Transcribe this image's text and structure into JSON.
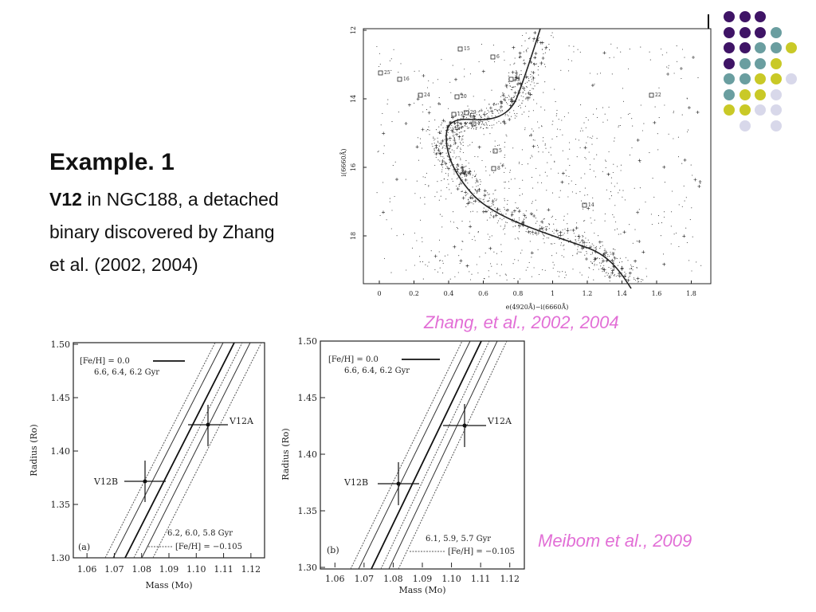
{
  "slide": {
    "title": "Example. 1",
    "star_bold": "V12",
    "description_first": " in NGC188, a detached",
    "description_lines": [
      "binary discovered by Zhang",
      "et al. (2002, 2004)"
    ],
    "credit_top": "Zhang, et al., 2002, 2004",
    "credit_bottom": "Meibom et al., 2009"
  },
  "decor_dots": {
    "colors": [
      "#3f1466",
      "#6a9ea0",
      "#c9c927",
      "#d8d8ea"
    ]
  },
  "cmd_figure": {
    "xlabel": "e(4920Å)−i(6660Å)",
    "ylabel": "i(6660Å)",
    "x_ticks": [
      "0",
      "0.2",
      "0.4",
      "0.6",
      "0.8",
      "1",
      "1.2",
      "1.4",
      "1.6",
      "1.8"
    ],
    "y_ticks": [
      "12",
      "14",
      "16",
      "18"
    ],
    "star_labels": [
      "15",
      "6",
      "25",
      "16",
      "11",
      "24",
      "20",
      "22",
      "12",
      "29",
      "17",
      "5",
      "14",
      "8"
    ]
  },
  "mr_figures": [
    {
      "panel": "(a)",
      "xlabel": "Mass (Mo)",
      "ylabel": "Radius (Ro)",
      "legend_top": "[Fe/H] = 0.0",
      "legend_top_ages": "6.6, 6.4, 6.2 Gyr",
      "legend_bottom_ages": "6.2, 6.0, 5.8 Gyr",
      "legend_bottom": "[Fe/H] = −0.105",
      "x_ticks": [
        "1.06",
        "1.07",
        "1.08",
        "1.09",
        "1.10",
        "1.11",
        "1.12"
      ],
      "y_ticks": [
        "1.50",
        "1.45",
        "1.40",
        "1.35",
        "1.30"
      ],
      "star_a": "V12A",
      "star_b": "V12B"
    },
    {
      "panel": "(b)",
      "xlabel": "Mass (Mo)",
      "ylabel": "Radius (Ro)",
      "legend_top": "[Fe/H] = 0.0",
      "legend_top_ages": "6.6, 6.4, 6.2 Gyr",
      "legend_bottom_ages": "6.1, 5.9, 5.7 Gyr",
      "legend_bottom": "[Fe/H] = −0.105",
      "x_ticks": [
        "1.06",
        "1.07",
        "1.08",
        "1.09",
        "1.10",
        "1.11",
        "1.12"
      ],
      "y_ticks": [
        "1.50",
        "1.45",
        "1.40",
        "1.35",
        "1.30"
      ],
      "star_a": "V12A",
      "star_b": "V12B"
    }
  ]
}
